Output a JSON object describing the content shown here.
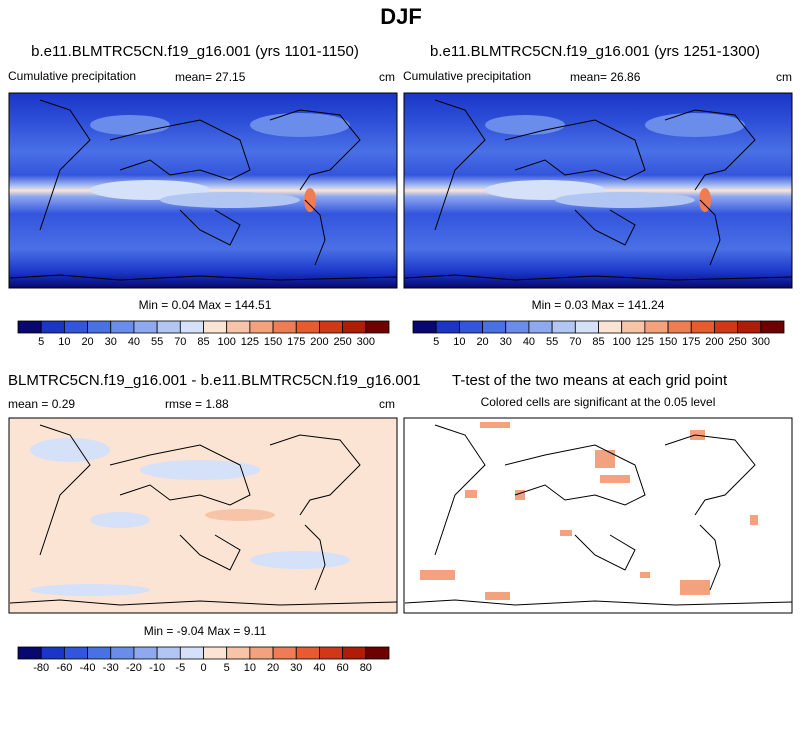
{
  "header": {
    "title": "DJF"
  },
  "panels": [
    {
      "title": "b.e11.BLMTRC5CN.f19_g16.001 (yrs 1101-1150)",
      "left": "Cumulative precipitation",
      "mean": "mean=  27.15",
      "units": "cm",
      "stats": "Min =   0.04 Max = 144.51",
      "colorbar": [
        5,
        10,
        20,
        30,
        40,
        55,
        70,
        85,
        100,
        125,
        150,
        175,
        200,
        250,
        300
      ]
    },
    {
      "title": "b.e11.BLMTRC5CN.f19_g16.001 (yrs 1251-1300)",
      "left": "Cumulative precipitation",
      "mean": "mean=  26.86",
      "units": "cm",
      "stats": "Min =   0.03 Max = 141.24",
      "colorbar": [
        5,
        10,
        20,
        30,
        40,
        55,
        70,
        85,
        100,
        125,
        150,
        175,
        200,
        250,
        300
      ]
    },
    {
      "title": "BLMTRC5CN.f19_g16.001 - b.e11.BLMTRC5CN.f19_g16.001",
      "mean": "mean =   0.29",
      "rmse": "rmse =   1.88",
      "units": "cm",
      "stats": "Min = -9.04 Max =  9.11",
      "colorbar": [
        -80,
        -60,
        -40,
        -30,
        -20,
        -10,
        -5,
        0,
        5,
        10,
        20,
        30,
        40,
        60,
        80
      ]
    },
    {
      "title": "T-test of the two means at each grid point",
      "subtitle": "Colored cells are significant at the 0.05 level"
    }
  ]
}
